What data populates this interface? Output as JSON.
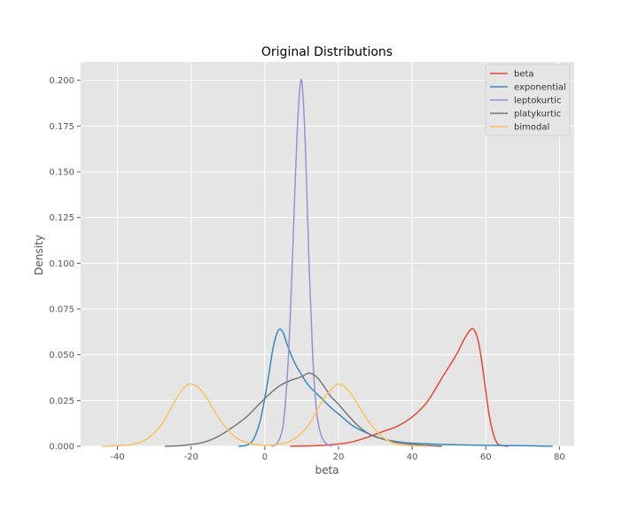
{
  "chart_data": {
    "type": "line",
    "title": "Original Distributions",
    "xlabel": "beta",
    "ylabel": "Density",
    "xlim": [
      -50,
      84
    ],
    "ylim": [
      0,
      0.21
    ],
    "xticks": [
      -40,
      -20,
      0,
      20,
      40,
      60,
      80
    ],
    "yticks": [
      0.0,
      0.025,
      0.05,
      0.075,
      0.1,
      0.125,
      0.15,
      0.175,
      0.2
    ],
    "grid": true,
    "legend": "top-right",
    "series": [
      {
        "name": "beta",
        "color": "#E24A33",
        "x": [
          7,
          12,
          16,
          20,
          24,
          28,
          32,
          36,
          40,
          44,
          48,
          52,
          54,
          56,
          57,
          58,
          59,
          60,
          61,
          62,
          63,
          64,
          66
        ],
        "y": [
          0.0,
          0.0002,
          0.0005,
          0.0012,
          0.0025,
          0.005,
          0.008,
          0.011,
          0.016,
          0.024,
          0.037,
          0.05,
          0.058,
          0.064,
          0.063,
          0.057,
          0.045,
          0.03,
          0.016,
          0.007,
          0.002,
          0.0005,
          0.0
        ]
      },
      {
        "name": "exponential",
        "color": "#348ABD",
        "x": [
          -7,
          -5,
          -3,
          -1,
          1,
          2,
          3,
          4,
          5,
          6,
          8,
          10,
          12,
          15,
          18,
          21,
          24,
          28,
          32,
          36,
          40,
          50,
          60,
          70,
          78
        ],
        "y": [
          0.0,
          0.0005,
          0.004,
          0.016,
          0.038,
          0.051,
          0.06,
          0.064,
          0.062,
          0.056,
          0.046,
          0.039,
          0.033,
          0.027,
          0.021,
          0.016,
          0.011,
          0.007,
          0.004,
          0.0025,
          0.0017,
          0.0009,
          0.0005,
          0.0003,
          0.0
        ]
      },
      {
        "name": "leptokurtic",
        "color": "#988ED5",
        "x": [
          2,
          3,
          4,
          5,
          6,
          7,
          8,
          9,
          10,
          11,
          12,
          13,
          14,
          15,
          16,
          17,
          18
        ],
        "y": [
          0.0,
          0.001,
          0.004,
          0.012,
          0.035,
          0.075,
          0.13,
          0.18,
          0.2,
          0.165,
          0.1,
          0.05,
          0.02,
          0.008,
          0.003,
          0.001,
          0.0
        ]
      },
      {
        "name": "platykurtic",
        "color": "#777777",
        "x": [
          -27,
          -22,
          -17,
          -13,
          -9,
          -5,
          -2,
          1,
          4,
          7,
          10,
          12,
          14,
          16,
          18,
          20,
          23,
          26,
          29,
          32,
          36,
          40,
          44,
          48
        ],
        "y": [
          0.0,
          0.0005,
          0.002,
          0.005,
          0.01,
          0.016,
          0.022,
          0.028,
          0.033,
          0.036,
          0.038,
          0.04,
          0.038,
          0.033,
          0.027,
          0.023,
          0.016,
          0.01,
          0.006,
          0.004,
          0.002,
          0.001,
          0.0004,
          0.0
        ]
      },
      {
        "name": "bimodal",
        "color": "#FBC15E",
        "x": [
          -44,
          -40,
          -36,
          -32,
          -28,
          -24,
          -22,
          -20,
          -18,
          -16,
          -12,
          -8,
          -4,
          0,
          4,
          8,
          12,
          16,
          18,
          20,
          22,
          24,
          28,
          32,
          36,
          40,
          44
        ],
        "y": [
          0.0,
          0.0003,
          0.001,
          0.004,
          0.012,
          0.026,
          0.032,
          0.034,
          0.032,
          0.027,
          0.014,
          0.005,
          0.0015,
          0.0005,
          0.0012,
          0.004,
          0.012,
          0.026,
          0.031,
          0.034,
          0.032,
          0.027,
          0.014,
          0.005,
          0.001,
          0.0003,
          0.0
        ]
      }
    ]
  }
}
